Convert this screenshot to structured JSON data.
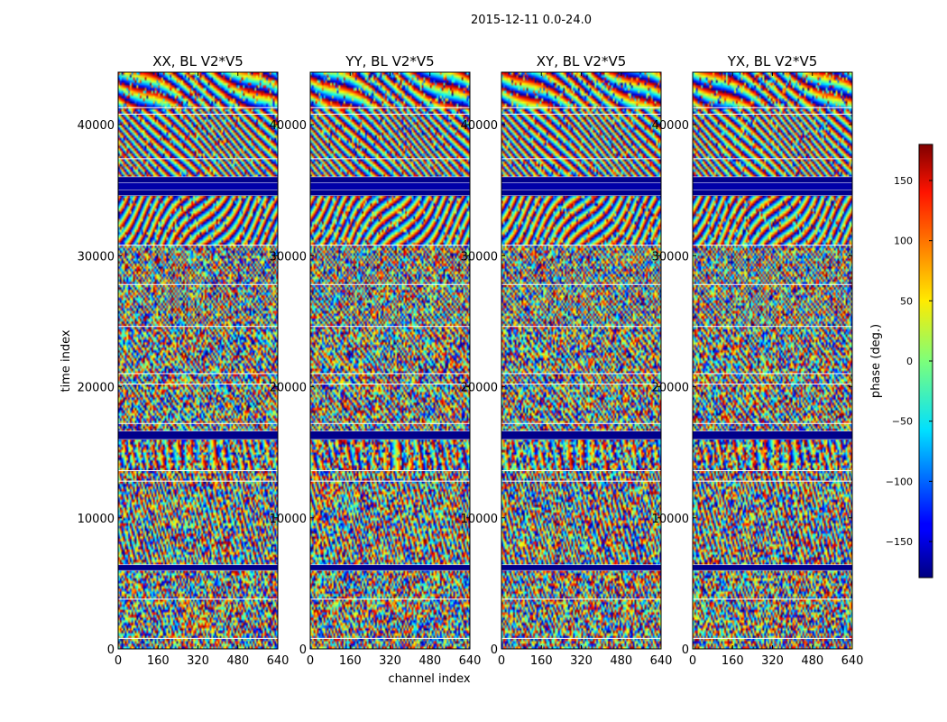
{
  "chart_data": {
    "type": "heatmap",
    "suptitle": "2015-12-11 0.0-24.0",
    "xlabel": "channel index",
    "ylabel": "time index",
    "xlim": [
      0,
      640
    ],
    "ylim": [
      0,
      44000
    ],
    "xticks": [
      0,
      160,
      320,
      480,
      640
    ],
    "yticks": [
      0,
      10000,
      20000,
      30000,
      40000
    ],
    "panels": [
      {
        "title": "XX, BL V2*V5"
      },
      {
        "title": "YY, BL V2*V5"
      },
      {
        "title": "XY, BL V2*V5"
      },
      {
        "title": "YX, BL V2*V5"
      }
    ],
    "colorbar": {
      "label": "phase (deg.)",
      "range": [
        -180,
        180
      ],
      "ticks": [
        -150,
        -100,
        -50,
        0,
        50,
        100,
        150
      ],
      "tick_labels": [
        "−150",
        "−100",
        "−50",
        "0",
        "50",
        "100",
        "150"
      ],
      "colormap": "jet"
    },
    "flagged_time_bands": [
      [
        6000,
        6400
      ],
      [
        16000,
        16600
      ],
      [
        34600,
        35000
      ],
      [
        35600,
        36000
      ]
    ],
    "segment_boundaries": [
      800,
      3800,
      6000,
      6400,
      12800,
      13600,
      16000,
      16600,
      17200,
      20200,
      21000,
      24600,
      27800,
      30800,
      34600,
      35000,
      35600,
      36000,
      37400,
      40800,
      41300,
      44000
    ],
    "fringe_bands": [
      {
        "t0": 0,
        "t1": 6000,
        "freq": 7,
        "slope": 3,
        "noise": 0.55
      },
      {
        "t0": 6400,
        "t1": 13600,
        "freq": 6,
        "slope": 2,
        "noise": 0.45
      },
      {
        "t0": 13600,
        "t1": 16000,
        "freq": 3,
        "slope": 0.5,
        "noise": 0.5
      },
      {
        "t0": 16600,
        "t1": 24600,
        "freq": 5,
        "slope": 4,
        "noise": 0.45
      },
      {
        "t0": 24600,
        "t1": 30800,
        "freq": 6,
        "slope": 5,
        "noise": 0.35
      },
      {
        "t0": 30800,
        "t1": 34600,
        "freq": 2.5,
        "slope": 9,
        "noise": 0.15
      },
      {
        "t0": 36000,
        "t1": 41300,
        "freq": 3,
        "slope": 14,
        "noise": 0.1
      },
      {
        "t0": 41300,
        "t1": 44000,
        "freq": 1.2,
        "slope": 2,
        "noise": 0.2
      }
    ]
  }
}
